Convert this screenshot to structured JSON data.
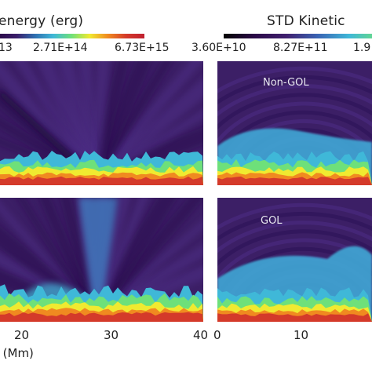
{
  "colorbars": {
    "left": {
      "title": "energy (erg)",
      "ticks": [
        "13",
        "2.71E+14",
        "6.73E+15"
      ],
      "colors": [
        "#2b0a48",
        "#3a1e6a",
        "#2f6fb0",
        "#3fb8d8",
        "#6ee07a",
        "#f0ea30",
        "#f08a20",
        "#d43a2a",
        "#c02030"
      ]
    },
    "right": {
      "title": "STD Kinetic",
      "ticks": [
        "3.60E+10",
        "8.27E+11",
        "1.9"
      ],
      "colors": [
        "#050505",
        "#2b0a48",
        "#40206f",
        "#3a64b4",
        "#3fb8d8",
        "#6ee07a"
      ]
    }
  },
  "panels": {
    "top_right_label": "Non-GOL",
    "bottom_right_label": "GOL"
  },
  "axes": {
    "left_xticks": [
      "20",
      "30",
      "40"
    ],
    "right_xticks": [
      "0",
      "10"
    ],
    "xlabel": "x (Mm)"
  },
  "chart_data": [
    {
      "type": "heatmap",
      "panel": "top-left",
      "xlabel": "",
      "ylabel": ""
    },
    {
      "type": "heatmap",
      "panel": "top-right",
      "annotation": "Non-GOL",
      "xlabel": "",
      "ylabel": ""
    },
    {
      "type": "heatmap",
      "panel": "bottom-left",
      "xlabel": "",
      "ylabel": ""
    },
    {
      "type": "heatmap",
      "panel": "bottom-right",
      "annotation": "GOL",
      "xlabel": "x (Mm)",
      "ylabel": ""
    }
  ]
}
